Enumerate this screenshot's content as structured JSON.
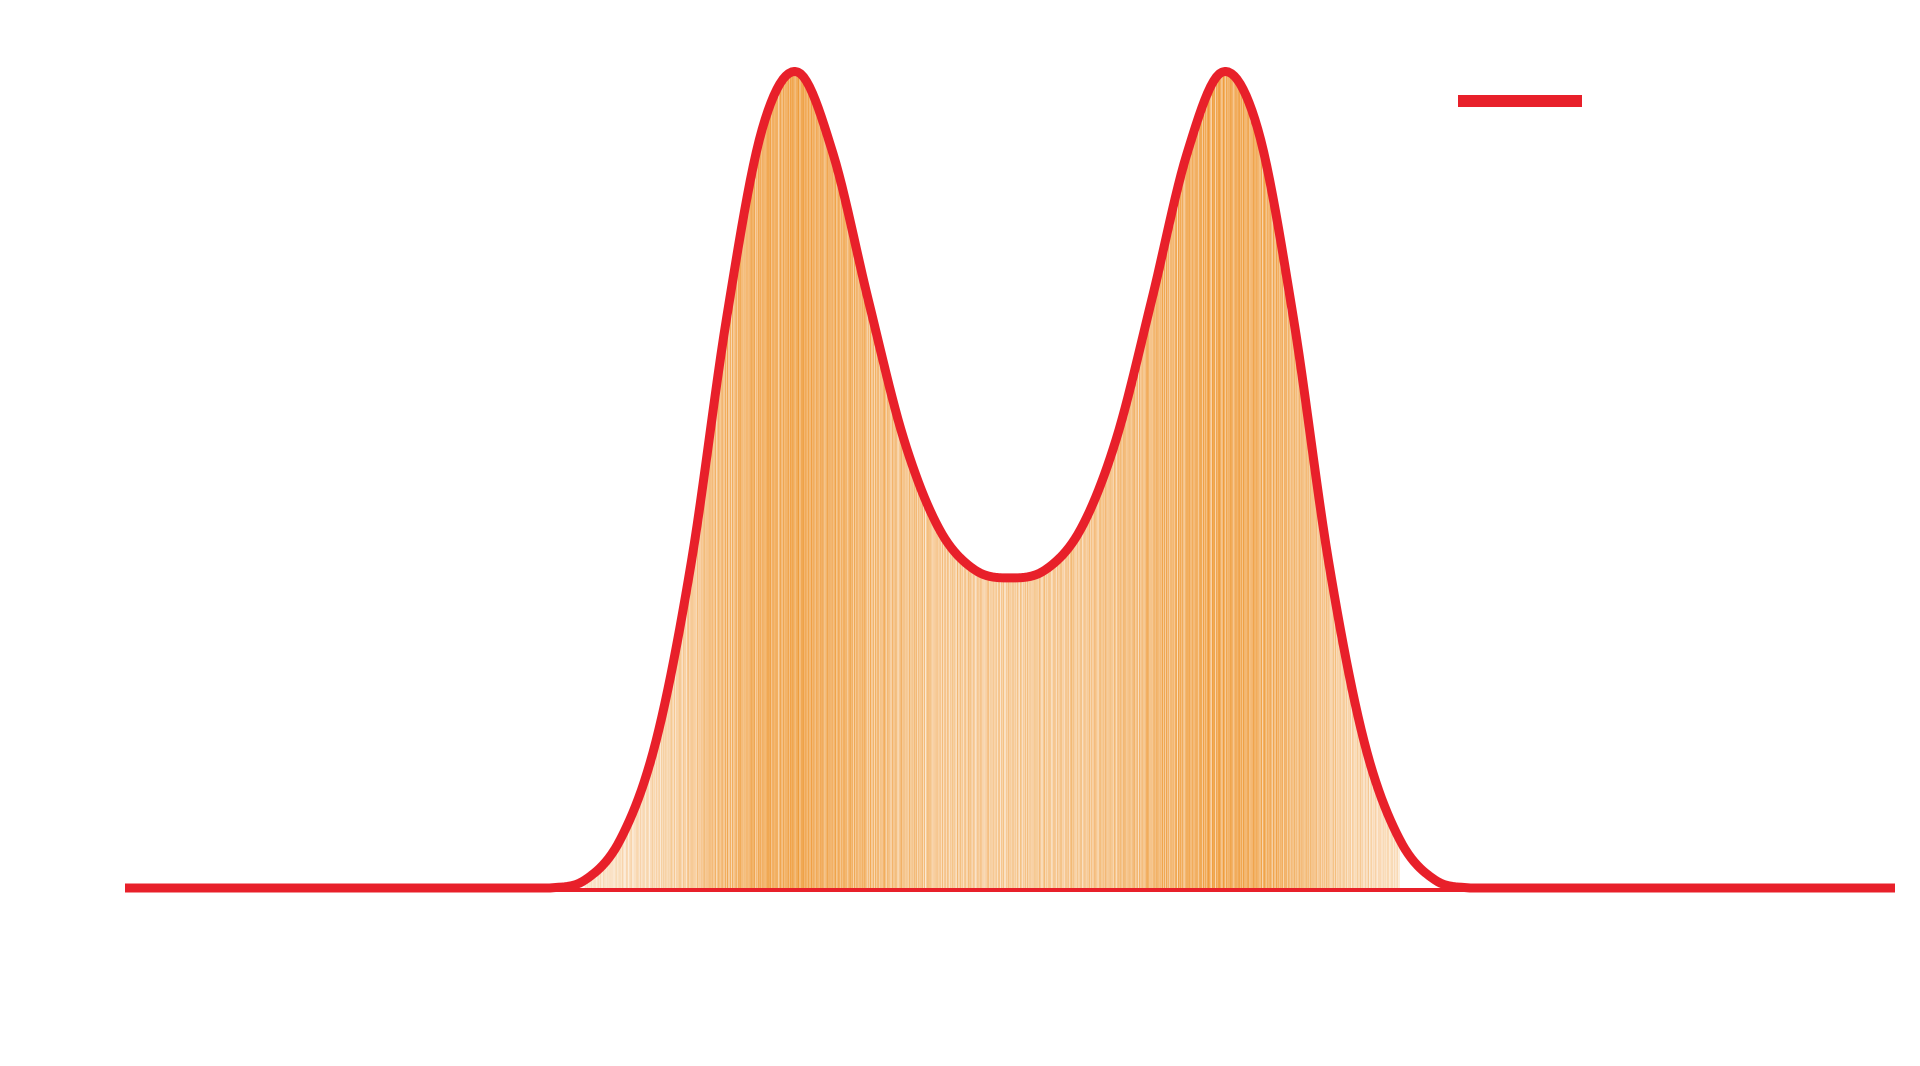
{
  "chart_data": {
    "type": "area",
    "title": "",
    "xlabel": "",
    "ylabel": "",
    "xlim": [
      -5,
      5
    ],
    "ylim": [
      0,
      1
    ],
    "grid": false,
    "legend": {
      "placement": "top-right",
      "entries": [
        {
          "label": "",
          "color": "#e8202a",
          "style": "line"
        }
      ]
    },
    "series": [
      {
        "kind": "density-curve",
        "color": "#e8202a",
        "x": [
          -5.0,
          -2.6,
          -2.4,
          -2.2,
          -2.0,
          -1.8,
          -1.6,
          -1.4,
          -1.2,
          -1.0,
          -0.8,
          -0.6,
          -0.4,
          -0.2,
          0.0,
          0.2,
          0.4,
          0.6,
          0.8,
          1.0,
          1.2,
          1.4,
          1.6,
          1.8,
          2.0,
          2.2,
          2.4,
          2.6,
          5.0
        ],
        "y": [
          0.0,
          0.0,
          0.01,
          0.06,
          0.18,
          0.4,
          0.7,
          0.93,
          1.0,
          0.9,
          0.72,
          0.55,
          0.44,
          0.39,
          0.38,
          0.39,
          0.44,
          0.55,
          0.72,
          0.9,
          1.0,
          0.93,
          0.7,
          0.4,
          0.18,
          0.06,
          0.01,
          0.0,
          0.0
        ]
      },
      {
        "kind": "rug-lines",
        "color": "#ec8c1c",
        "range": [
          -2.4,
          2.2
        ]
      }
    ],
    "colors": {
      "curve": "#e8202a",
      "fill": "#ec8c1c"
    }
  }
}
